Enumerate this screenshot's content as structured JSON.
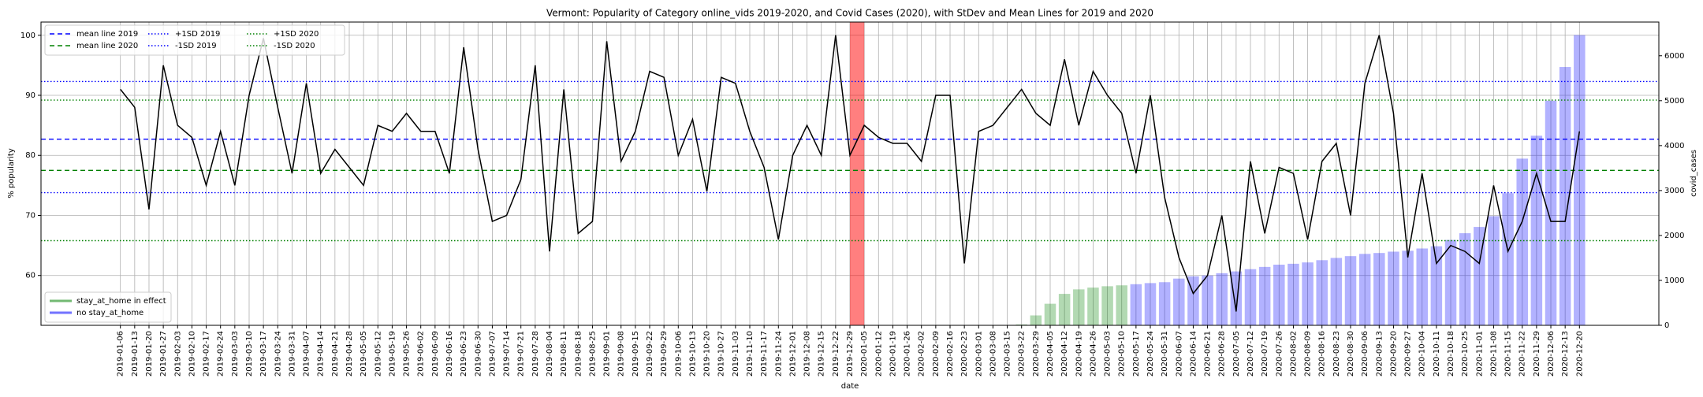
{
  "chart_data": {
    "type": "line",
    "title": "Vermont: Popularity of Category online_vids 2019-2020, and Covid Cases (2020), with StDev and Mean Lines for 2019 and 2020",
    "xlabel": "date",
    "ylabel": "% popularity",
    "y2label": "covid_cases",
    "categories": [
      "2019-01-06",
      "2019-01-13",
      "2019-01-20",
      "2019-01-27",
      "2019-02-03",
      "2019-02-10",
      "2019-02-17",
      "2019-02-24",
      "2019-03-03",
      "2019-03-10",
      "2019-03-17",
      "2019-03-24",
      "2019-03-31",
      "2019-04-07",
      "2019-04-14",
      "2019-04-21",
      "2019-04-28",
      "2019-05-05",
      "2019-05-12",
      "2019-05-19",
      "2019-05-26",
      "2019-06-02",
      "2019-06-09",
      "2019-06-16",
      "2019-06-23",
      "2019-06-30",
      "2019-07-07",
      "2019-07-14",
      "2019-07-21",
      "2019-07-28",
      "2019-08-04",
      "2019-08-11",
      "2019-08-18",
      "2019-08-25",
      "2019-09-01",
      "2019-09-08",
      "2019-09-15",
      "2019-09-22",
      "2019-09-29",
      "2019-10-06",
      "2019-10-13",
      "2019-10-20",
      "2019-10-27",
      "2019-11-03",
      "2019-11-10",
      "2019-11-17",
      "2019-11-24",
      "2019-12-01",
      "2019-12-08",
      "2019-12-15",
      "2019-12-22",
      "2019-12-29",
      "2020-01-05",
      "2020-01-12",
      "2020-01-19",
      "2020-01-26",
      "2020-02-02",
      "2020-02-09",
      "2020-02-16",
      "2020-02-23",
      "2020-03-01",
      "2020-03-08",
      "2020-03-15",
      "2020-03-22",
      "2020-03-29",
      "2020-04-05",
      "2020-04-12",
      "2020-04-19",
      "2020-04-26",
      "2020-05-03",
      "2020-05-10",
      "2020-05-17",
      "2020-05-24",
      "2020-05-31",
      "2020-06-07",
      "2020-06-14",
      "2020-06-21",
      "2020-06-28",
      "2020-07-05",
      "2020-07-12",
      "2020-07-19",
      "2020-07-26",
      "2020-08-02",
      "2020-08-09",
      "2020-08-16",
      "2020-08-23",
      "2020-08-30",
      "2020-09-06",
      "2020-09-13",
      "2020-09-20",
      "2020-09-27",
      "2020-10-04",
      "2020-10-11",
      "2020-10-18",
      "2020-10-25",
      "2020-11-01",
      "2020-11-08",
      "2020-11-15",
      "2020-11-22",
      "2020-11-29",
      "2020-12-06",
      "2020-12-13",
      "2020-12-20"
    ],
    "series": [
      {
        "type": "line",
        "color": "#000000",
        "values": [
          91,
          88,
          71,
          95,
          85,
          83,
          75,
          84,
          75,
          90,
          99.5,
          88,
          77,
          92,
          77,
          81,
          78,
          75,
          85,
          84,
          87,
          84,
          84,
          77,
          98,
          81,
          69,
          70,
          76,
          95,
          64,
          91,
          67,
          69,
          99,
          79,
          84,
          94,
          93,
          80,
          86,
          74,
          93,
          92,
          84,
          78,
          66,
          80,
          85,
          80,
          100,
          80,
          85,
          83,
          82,
          82,
          79,
          90,
          90,
          62,
          84,
          85,
          88,
          91,
          87,
          85,
          96,
          85,
          94,
          90,
          87,
          77,
          90,
          73,
          63,
          57,
          60,
          70,
          54,
          79,
          67,
          78,
          77,
          66,
          79,
          82,
          70,
          92,
          100,
          87,
          63,
          77,
          62,
          65,
          64,
          62,
          75,
          64,
          69,
          77,
          69,
          69,
          84
        ]
      },
      {
        "type": "bar",
        "name": "stay_at_home in effect",
        "color": "#008000",
        "axis": "y2",
        "values": [
          null,
          null,
          null,
          null,
          null,
          null,
          null,
          null,
          null,
          null,
          null,
          null,
          null,
          null,
          null,
          null,
          null,
          null,
          null,
          null,
          null,
          null,
          null,
          null,
          null,
          null,
          null,
          null,
          null,
          null,
          null,
          null,
          null,
          null,
          null,
          null,
          null,
          null,
          null,
          null,
          null,
          null,
          null,
          null,
          null,
          null,
          null,
          null,
          null,
          null,
          null,
          null,
          null,
          null,
          null,
          null,
          null,
          null,
          null,
          null,
          null,
          null,
          null,
          20,
          220,
          480,
          700,
          800,
          840,
          870,
          890,
          null,
          null,
          null,
          null,
          null,
          null,
          null,
          null,
          null,
          null,
          null,
          null,
          null,
          null,
          null,
          null,
          null,
          null,
          null,
          null,
          null,
          null,
          null,
          null,
          null,
          null,
          null,
          null,
          null,
          null,
          null,
          null
        ]
      },
      {
        "type": "bar",
        "name": "no stay_at_home",
        "color": "#0000ff",
        "axis": "y2",
        "values": [
          null,
          null,
          null,
          null,
          null,
          null,
          null,
          null,
          null,
          null,
          null,
          null,
          null,
          null,
          null,
          null,
          null,
          null,
          null,
          null,
          null,
          null,
          null,
          null,
          null,
          null,
          null,
          null,
          null,
          null,
          null,
          null,
          null,
          null,
          null,
          null,
          null,
          null,
          null,
          null,
          null,
          null,
          null,
          null,
          null,
          null,
          null,
          null,
          null,
          null,
          null,
          null,
          null,
          null,
          null,
          null,
          null,
          null,
          null,
          null,
          null,
          null,
          null,
          null,
          null,
          null,
          null,
          null,
          null,
          null,
          null,
          915,
          940,
          960,
          1040,
          1090,
          1110,
          1160,
          1200,
          1250,
          1300,
          1350,
          1370,
          1400,
          1450,
          1500,
          1540,
          1590,
          1610,
          1640,
          1660,
          1710,
          1760,
          1900,
          2050,
          2190,
          2430,
          2940,
          3710,
          4220,
          5000,
          5750,
          6460
        ]
      }
    ],
    "bar_alpha": 0.3,
    "reference_lines": [
      {
        "name": "mean line 2019",
        "value": 82.7,
        "color": "#0000ff",
        "style": "dashed"
      },
      {
        "name": "mean line 2020",
        "value": 77.5,
        "color": "#008000",
        "style": "dashed"
      },
      {
        "name": "+1SD 2019",
        "value": 92.3,
        "color": "#0000ff",
        "style": "dotted"
      },
      {
        "name": "-1SD 2019",
        "value": 73.8,
        "color": "#0000ff",
        "style": "dotted"
      },
      {
        "name": "+1SD 2020",
        "value": 89.2,
        "color": "#008000",
        "style": "dotted"
      },
      {
        "name": "-1SD 2020",
        "value": 65.8,
        "color": "#008000",
        "style": "dotted"
      }
    ],
    "ylim": [
      51.7,
      102.2
    ],
    "yticks": [
      60,
      70,
      80,
      90,
      100
    ],
    "y2lim": [
      0,
      6750
    ],
    "y2ticks": [
      0,
      1000,
      2000,
      3000,
      4000,
      5000,
      6000
    ],
    "grid": true,
    "legend": "upper left",
    "bar_legend": "lower left"
  }
}
